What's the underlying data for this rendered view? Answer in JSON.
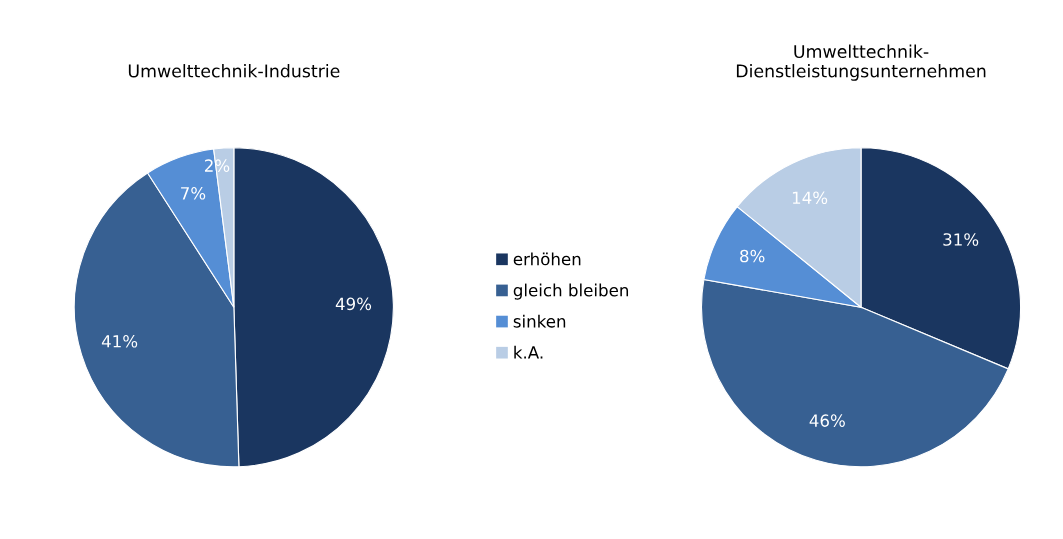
{
  "chart_data": [
    {
      "type": "pie",
      "title": "Umwelttechnik-Industrie",
      "categories": [
        "erhöhen",
        "gleich bleiben",
        "sinken",
        "k.A."
      ],
      "values": [
        49,
        41,
        7,
        2
      ],
      "value_labels": [
        "49%",
        "41%",
        "7%",
        "2%"
      ],
      "colors": [
        "#1a3660",
        "#376092",
        "#558ed5",
        "#b9cde5"
      ],
      "legend": "right"
    },
    {
      "type": "pie",
      "title": "Umwelttechnik-\nDienstleistungsunternehmen",
      "categories": [
        null,
        null,
        null,
        null
      ],
      "values": [
        31,
        46,
        8,
        14
      ],
      "value_labels": [
        "31%",
        "46%",
        "8%",
        "14%"
      ],
      "colors": [
        "#1a3660",
        "#376092",
        "#558ed5",
        "#b9cde5"
      ]
    }
  ]
}
